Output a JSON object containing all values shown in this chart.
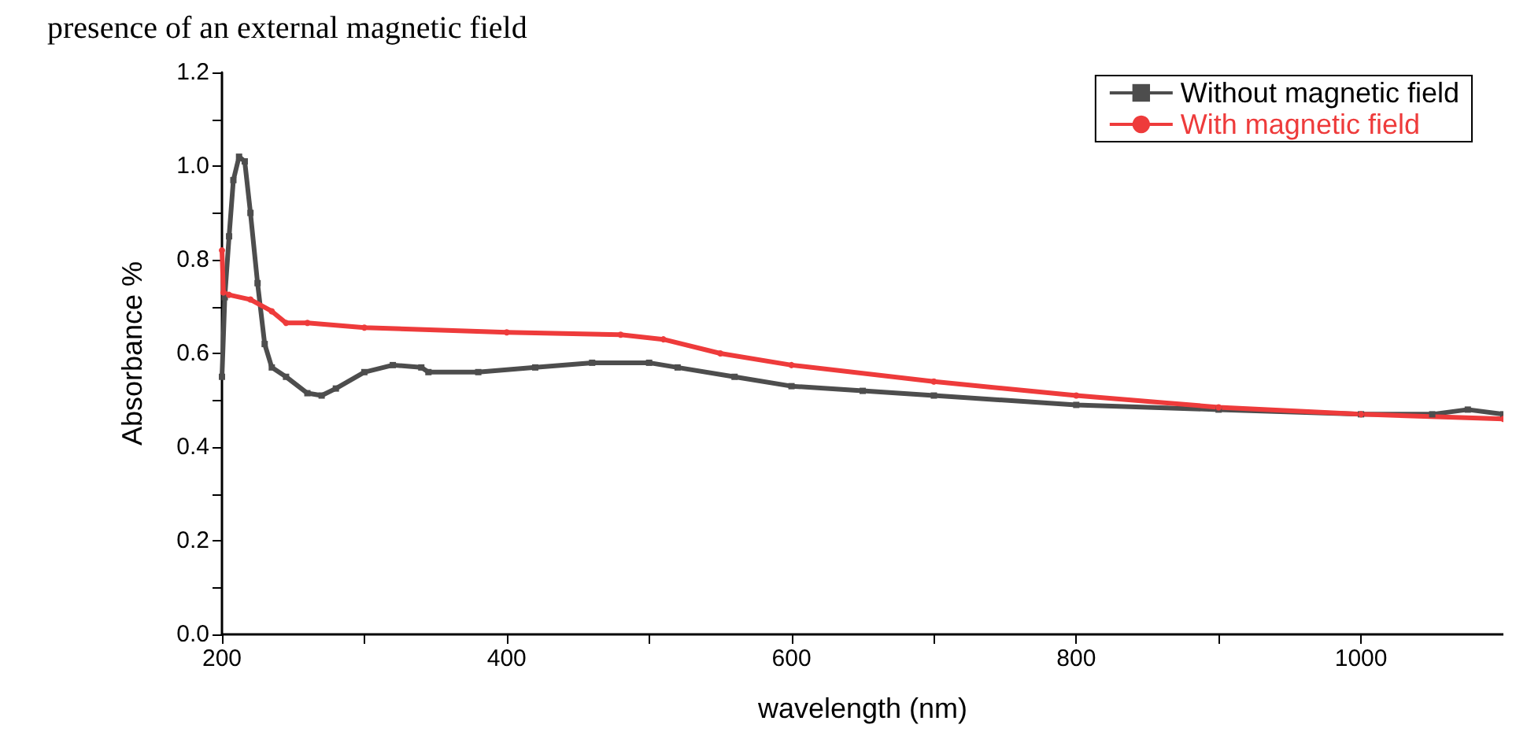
{
  "chart_data": {
    "type": "line",
    "annotations": [
      "presence of an external magnetic field"
    ],
    "xlabel": "wavelength (nm)",
    "ylabel": "Absorbance %",
    "xlim": [
      200,
      1100
    ],
    "xticks": [
      200,
      {
        "value": 300,
        "label": null
      },
      400,
      {
        "value": 500,
        "label": null
      },
      600,
      {
        "value": 700,
        "label": null
      },
      800,
      {
        "value": 900,
        "label": null
      },
      1000,
      {
        "value": 1100,
        "label": null
      }
    ],
    "ylim": [
      0,
      1.2
    ],
    "yticks": [
      {
        "value": 0,
        "label": "0.0"
      },
      {
        "value": 0.1,
        "label": null
      },
      0.2,
      {
        "value": 0.3,
        "label": null
      },
      0.4,
      {
        "value": 0.5,
        "label": null
      },
      0.6,
      {
        "value": 0.7,
        "label": null
      },
      0.8,
      {
        "value": 0.9,
        "label": null
      },
      {
        "value": 1,
        "label": "1.0"
      },
      {
        "value": 1.1,
        "label": null
      },
      1.2
    ],
    "legend": "top right",
    "grid": false,
    "series": [
      {
        "name": "Without magnetic field",
        "color": "#4d4d4d",
        "marker": "square",
        "x": [
          200,
          202,
          205,
          208,
          212,
          216,
          220,
          225,
          230,
          235,
          245,
          260,
          270,
          280,
          300,
          320,
          340,
          345,
          380,
          420,
          460,
          500,
          520,
          560,
          600,
          650,
          700,
          800,
          900,
          1000,
          1050,
          1075,
          1100
        ],
        "values": [
          0.55,
          0.72,
          0.85,
          0.97,
          1.02,
          1.01,
          0.9,
          0.75,
          0.62,
          0.57,
          0.55,
          0.515,
          0.51,
          0.525,
          0.56,
          0.575,
          0.57,
          0.56,
          0.56,
          0.57,
          0.58,
          0.58,
          0.57,
          0.55,
          0.53,
          0.52,
          0.51,
          0.49,
          0.48,
          0.47,
          0.47,
          0.48,
          0.47
        ]
      },
      {
        "name": "With magnetic field",
        "color": "#ee3b3b",
        "marker": "circle",
        "x": [
          200,
          201,
          205,
          220,
          235,
          245,
          260,
          300,
          400,
          480,
          510,
          550,
          600,
          700,
          800,
          900,
          1000,
          1100
        ],
        "values": [
          0.82,
          0.73,
          0.725,
          0.715,
          0.69,
          0.665,
          0.665,
          0.655,
          0.645,
          0.64,
          0.63,
          0.6,
          0.575,
          0.54,
          0.51,
          0.485,
          0.47,
          0.46
        ]
      }
    ]
  }
}
